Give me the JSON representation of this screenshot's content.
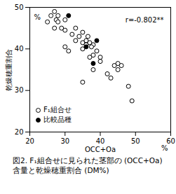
{
  "chart_data": {
    "type": "scatter",
    "title": "図2. F₁組合せに見られた茎部の (OCC+Oa)\n含量と乾燥穂重割合 (DM%)",
    "x_label": "OCC+Oa",
    "x_unit": "%",
    "y_label": "乾燥穂重割合",
    "y_unit": "%",
    "annotations": [
      {
        "text": "r=-0.802**"
      }
    ],
    "xlim": [
      20,
      60
    ],
    "xticks": [
      20,
      30,
      40,
      50,
      60
    ],
    "ylim": [
      20,
      50
    ],
    "yticks": [
      20,
      30,
      40,
      50
    ],
    "legend": "bottom-left",
    "series": [
      {
        "name": "F₁組合せ",
        "marker": "open",
        "color": "#000000",
        "x": [
          25,
          26,
          27,
          27.5,
          28,
          28,
          27,
          29,
          30,
          30,
          32,
          33,
          34,
          35,
          36,
          35,
          35,
          36,
          36.5,
          37,
          38,
          37.5,
          38,
          37,
          39,
          40,
          40,
          38,
          35,
          42,
          43,
          44,
          45,
          45,
          46,
          48,
          49,
          31,
          33,
          30
        ],
        "values": [
          46.5,
          48,
          49,
          47,
          48,
          46.5,
          45,
          45,
          47,
          44.5,
          43.5,
          45,
          43,
          44,
          42,
          40,
          41.5,
          41,
          43,
          41.5,
          41,
          40.5,
          38.5,
          38,
          39.5,
          38,
          37,
          35,
          32,
          34,
          33,
          36,
          36.5,
          35,
          36,
          31,
          27.5,
          39.5,
          42,
          40.5
        ]
      },
      {
        "name": "比較品種",
        "marker": "filled",
        "color": "#000000",
        "x": [
          31,
          36,
          38,
          39
        ],
        "values": [
          48,
          40.5,
          36.5,
          42
        ]
      }
    ]
  }
}
